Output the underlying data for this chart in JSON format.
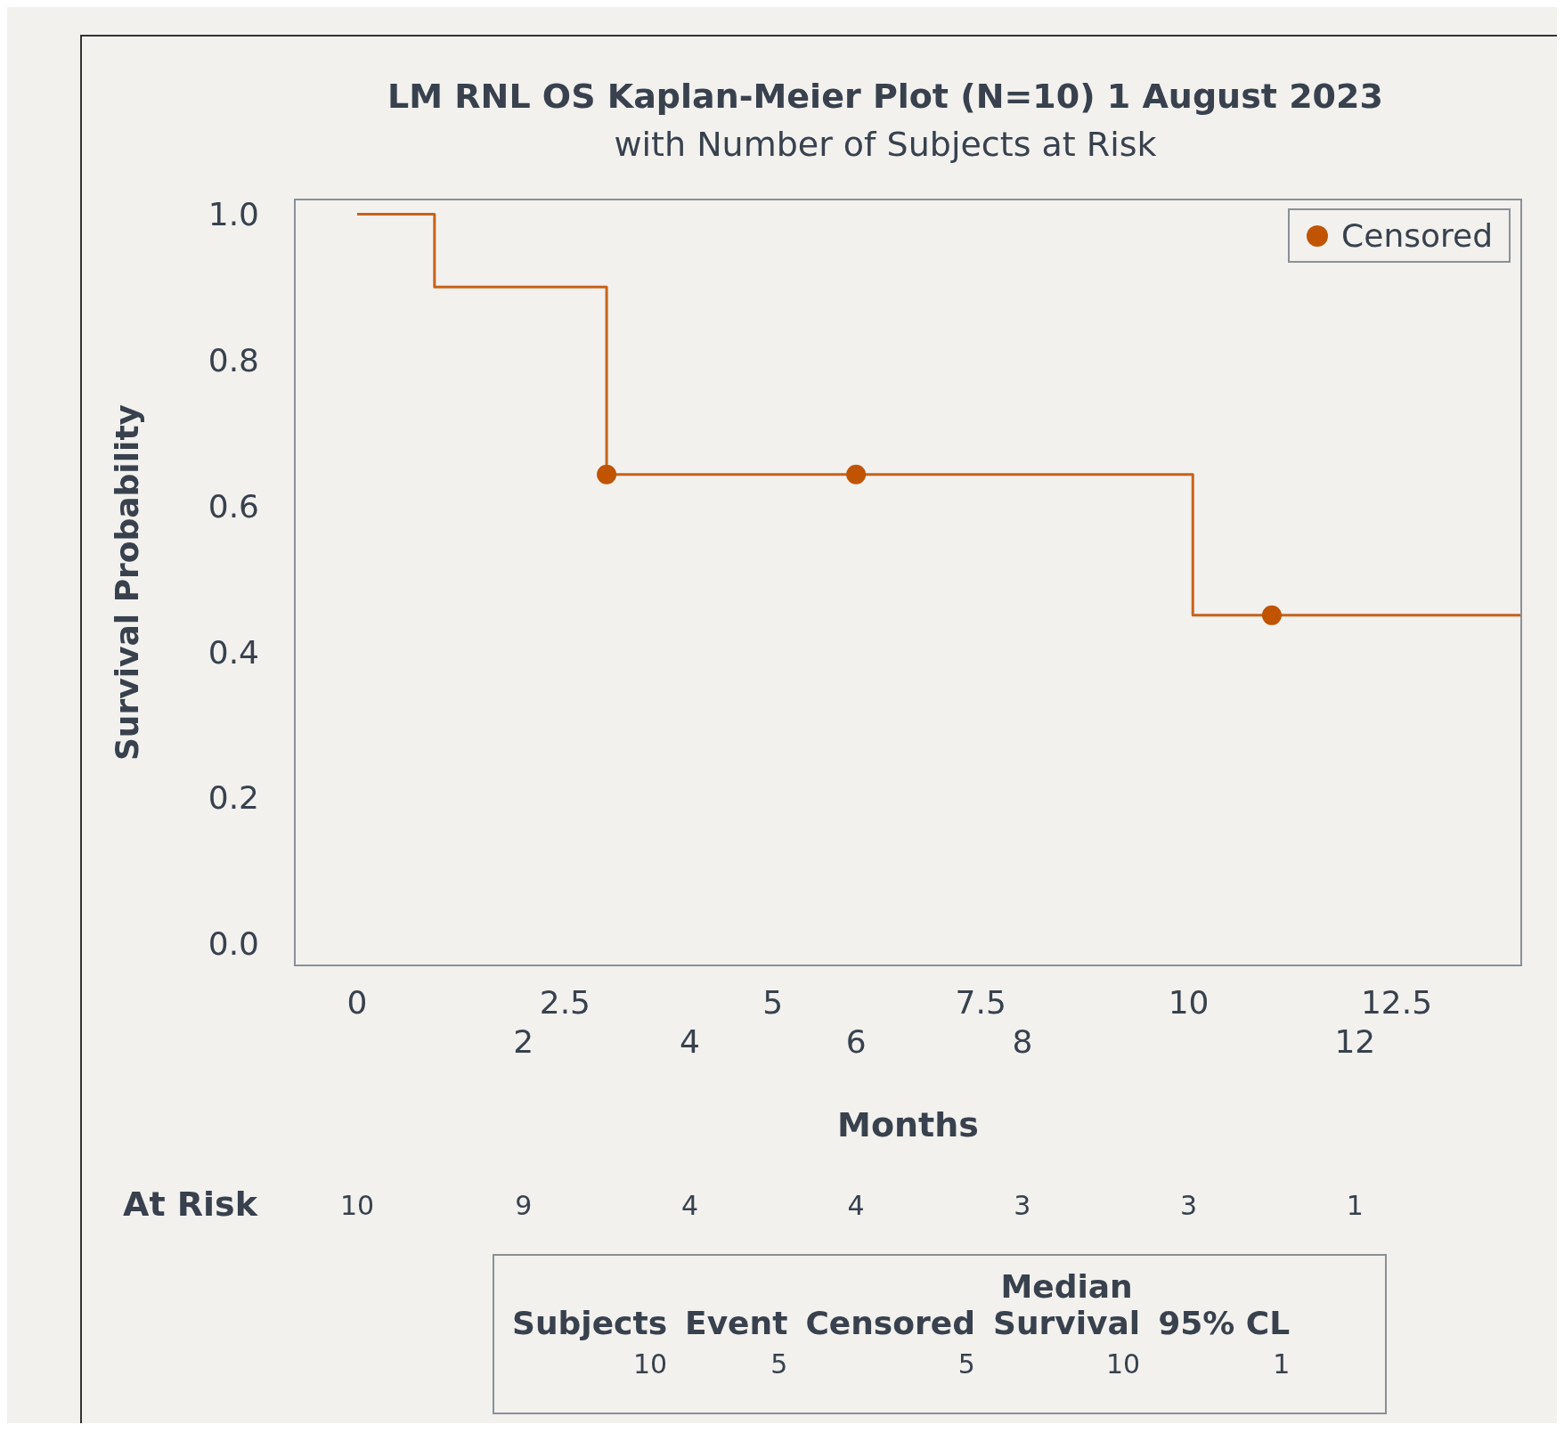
{
  "chart_data": {
    "type": "step",
    "title": "LM RNL OS Kaplan-Meier Plot (N=10) 1 August 2023",
    "subtitle": "with Number of Subjects at Risk",
    "xlabel": "Months",
    "ylabel": "Survival Probability",
    "series": [
      {
        "color": "#c8621a",
        "x": [
          0,
          0.93,
          3,
          10.05,
          14
        ],
        "values": [
          1,
          0.9,
          0.643,
          0.45,
          0.45
        ],
        "marker": "none"
      },
      {
        "type": "scatter",
        "name": "Censored",
        "color": "#c05400",
        "x": [
          3,
          6,
          11
        ],
        "values": [
          0.643,
          0.643,
          0.45
        ],
        "marker": "circle"
      }
    ],
    "xlim": [
      -0.75,
      14
    ],
    "xticks": [
      0,
      2.5,
      5,
      7.5,
      10,
      12.5
    ],
    "x2lim": [
      -0.75,
      14
    ],
    "x2ticks": [
      2,
      4,
      6,
      8,
      12
    ],
    "ylim": [
      -0.03,
      1.02
    ],
    "yticks": [
      {
        "value": 0,
        "label": "0.0"
      },
      0.2,
      0.4,
      0.6,
      0.8,
      {
        "value": 1,
        "label": "1.0"
      }
    ],
    "legend": "top right",
    "annotations": [
      "At Risk",
      "10",
      "9",
      "4",
      "4",
      "3",
      "3",
      "1",
      "Subjects",
      "Event",
      "Censored",
      "Median Survival",
      "95% CL",
      "10",
      "5",
      "5",
      "10",
      "1"
    ]
  }
}
